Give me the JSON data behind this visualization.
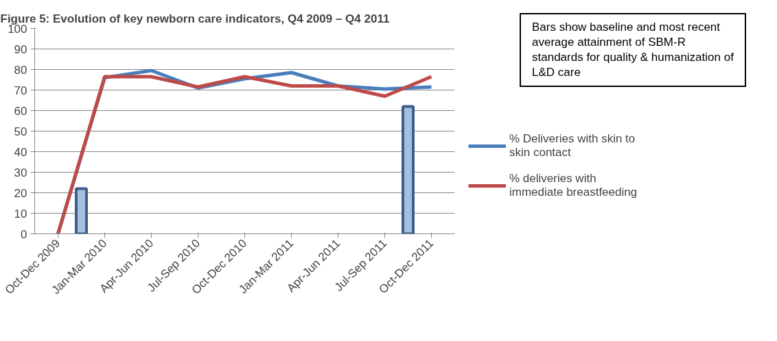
{
  "chart_data": {
    "type": "line",
    "title": "Figure 5: Evolution of key newborn care indicators, Q4 2009 – Q4 2011",
    "categories": [
      "Oct-Dec 2009",
      "Jan-Mar 2010",
      "Apr-Jun 2010",
      "Jul-Sep 2010",
      "Oct-Dec 2010",
      "Jan-Mar 2011",
      "Apr-Jun 2011",
      "Jul-Sep 2011",
      "Oct-Dec 2011"
    ],
    "series": [
      {
        "type": "bar",
        "color": "#a7bfdf",
        "values": [
          null,
          22,
          null,
          null,
          null,
          null,
          null,
          null,
          62
        ]
      },
      {
        "name": "% Deliveries with skin to skin contact",
        "color": "#4a7ebb",
        "values": [
          0,
          76,
          79.5,
          71,
          75.5,
          78.5,
          72,
          70.5,
          71.5
        ]
      },
      {
        "name": "% deliveries with immediate breastfeeding",
        "color": "#be4b48",
        "values": [
          0,
          76.5,
          76.5,
          71.5,
          76.5,
          72,
          72,
          67,
          76.5
        ]
      }
    ],
    "ylim": [
      0,
      100
    ],
    "yticks": [
      0,
      10,
      20,
      30,
      40,
      50,
      60,
      70,
      80,
      90,
      100
    ],
    "grid": "y",
    "legend": "right",
    "marker": "none",
    "line_style": "solid",
    "annotations": [
      "Bars show baseline and most recent average attainment of SBM-R standards for quality & humanization of L&D care"
    ]
  }
}
